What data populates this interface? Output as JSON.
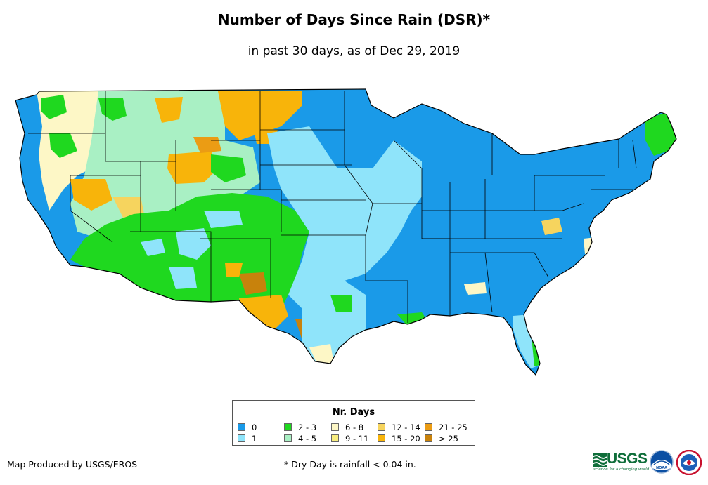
{
  "title": "Number of Days Since Rain (DSR)*",
  "subtitle": "in past 30 days, as of Dec 29, 2019",
  "legend": {
    "title": "Nr. Days",
    "items": [
      {
        "label": "0",
        "color": "#1a9ae8"
      },
      {
        "label": "1",
        "color": "#8fe4fa"
      },
      {
        "label": "2 - 3",
        "color": "#1fd81f"
      },
      {
        "label": "4 - 5",
        "color": "#a9f0c4"
      },
      {
        "label": "6 - 8",
        "color": "#fdf7c6"
      },
      {
        "label": "9 - 11",
        "color": "#f8ed7e"
      },
      {
        "label": "12 - 14",
        "color": "#f6d45e"
      },
      {
        "label": "15 - 20",
        "color": "#f8b40a"
      },
      {
        "label": "21 - 25",
        "color": "#eb9c14"
      },
      {
        "label": "> 25",
        "color": "#c8820c"
      }
    ]
  },
  "footer": {
    "credit": "Map Produced by USGS/EROS",
    "note": "* Dry Day is rainfall < 0.04 in."
  },
  "logos": {
    "usgs_text": "USGS",
    "usgs_tagline": "science for a changing world",
    "noaa_text": "NOAA"
  }
}
